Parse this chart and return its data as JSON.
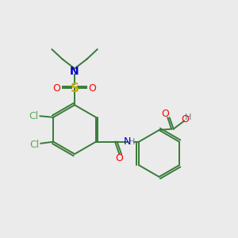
{
  "background_color": "#ebebeb",
  "atom_colors": {
    "C": "#3a7a3a",
    "N": "#0000cc",
    "O": "#ff0000",
    "S": "#ccaa00",
    "Cl": "#5aaa5a",
    "H": "#708090"
  },
  "bond_color": "#3a7a3a",
  "font_size": 9,
  "line_width": 1.4
}
